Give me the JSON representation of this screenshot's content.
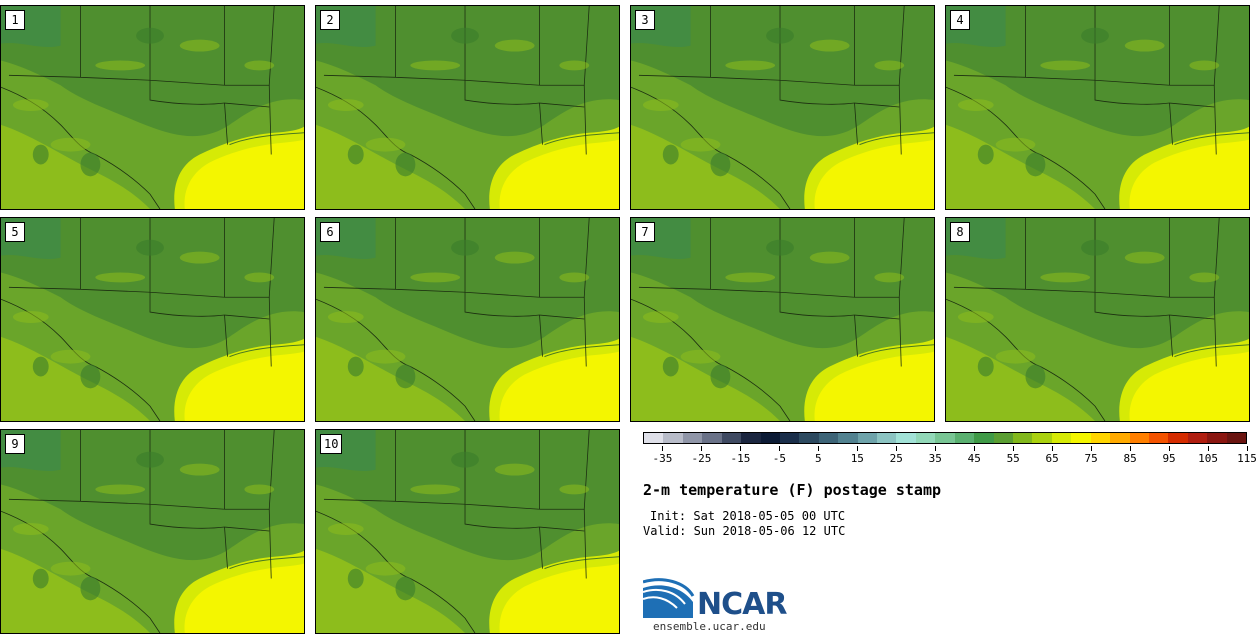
{
  "panels": [
    {
      "label": "1"
    },
    {
      "label": "2"
    },
    {
      "label": "3"
    },
    {
      "label": "4"
    },
    {
      "label": "5"
    },
    {
      "label": "6"
    },
    {
      "label": "7"
    },
    {
      "label": "8"
    },
    {
      "label": "9"
    },
    {
      "label": "10"
    }
  ],
  "colorbar": {
    "colors": [
      "#dfe0e9",
      "#b8bcc9",
      "#9096a8",
      "#6a7288",
      "#3f4a62",
      "#1b2640",
      "#0c1b35",
      "#1a2e4a",
      "#2d4a60",
      "#3d6477",
      "#528290",
      "#6ea3aa",
      "#8cc4c2",
      "#a2e2d7",
      "#92d8b8",
      "#78c594",
      "#5ab070",
      "#3f9a47",
      "#5a9e32",
      "#82b81c",
      "#aad10f",
      "#d6ea06",
      "#f4f600",
      "#ffd500",
      "#ffaa00",
      "#ff7f00",
      "#f45300",
      "#d52c00",
      "#b01e10",
      "#8a1610",
      "#6a1410"
    ],
    "tick_labels": [
      "-35",
      "-25",
      "-15",
      "-5",
      "5",
      "15",
      "25",
      "35",
      "45",
      "55",
      "65",
      "75",
      "85",
      "95",
      "105",
      "115"
    ]
  },
  "title": "2-m temperature (F) postage stamp",
  "init": "Init: Sat 2018-05-05 00 UTC",
  "valid": "Valid: Sun 2018-05-06 12 UTC",
  "logo_text": "NCAR",
  "website": "ensemble.ucar.edu",
  "colors": {
    "land_dark": "#4f8f2f",
    "land_mid": "#6aa52a",
    "land_light": "#8dbd1c",
    "gulf": "#f4f600",
    "gulf_edge": "#d6ea06"
  }
}
